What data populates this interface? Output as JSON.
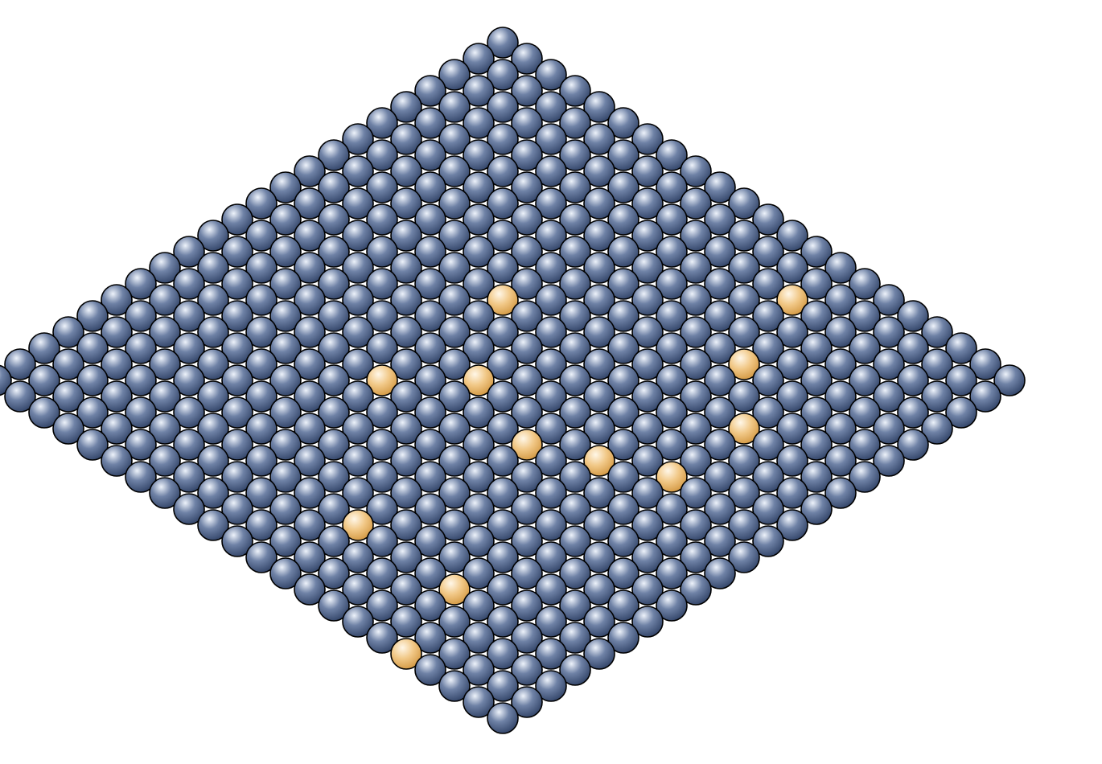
{
  "figure": {
    "description_kind": "lattice-rhombus",
    "lattice": {
      "rows": 22,
      "cols": 22,
      "row_col_offset": [
        -7,
        0
      ],
      "host_atom_color": "#6f82a6",
      "host_atom_highlight": "#eef3fb",
      "host_atom_shadow": "#34466a",
      "dopant_atom_color": "#f1c887",
      "dopant_atom_highlight": "#fff7e8",
      "dopant_atom_shadow": "#d49a45",
      "outline_color": "#000000",
      "host_atom_count": 472,
      "dopant_atom_count": 12
    },
    "dopant_sites": [
      [
        2,
        14
      ],
      [
        5,
        15
      ],
      [
        7,
        17
      ],
      [
        8,
        8
      ],
      [
        10,
        17
      ],
      [
        11,
        15
      ],
      [
        11,
        10
      ],
      [
        12,
        13
      ],
      [
        13,
        8
      ],
      [
        18,
        12
      ],
      [
        18,
        16
      ],
      [
        21,
        17
      ]
    ]
  }
}
